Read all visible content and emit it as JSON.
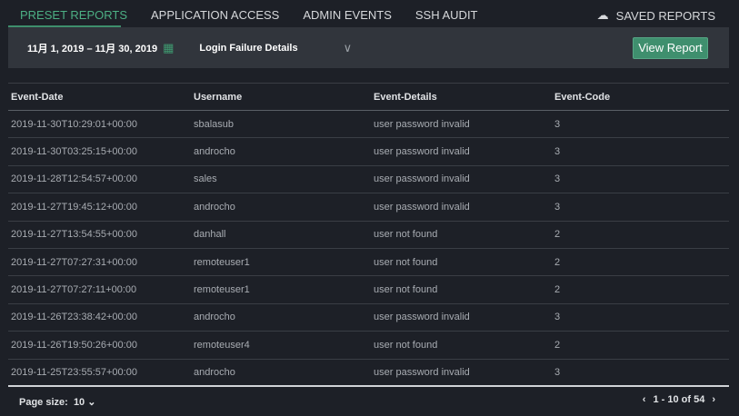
{
  "tabs": [
    {
      "label": "PRESET REPORTS",
      "active": true
    },
    {
      "label": "APPLICATION ACCESS"
    },
    {
      "label": "ADMIN EVENTS"
    },
    {
      "label": "SSH AUDIT"
    }
  ],
  "saved_reports": {
    "label": "SAVED REPORTS",
    "icon": "cloud-icon"
  },
  "toolbar": {
    "date_range": "11月 1, 2019 – 11月 30, 2019",
    "report": "Login Failure Details",
    "view_button": "View Report"
  },
  "table": {
    "headers": [
      "Event-Date",
      "Username",
      "Event-Details",
      "Event-Code"
    ],
    "rows": [
      [
        "2019-11-30T10:29:01+00:00",
        "sbalasub",
        "user password invalid",
        "3"
      ],
      [
        "2019-11-30T03:25:15+00:00",
        "androcho",
        "user password invalid",
        "3"
      ],
      [
        "2019-11-28T12:54:57+00:00",
        "sales",
        "user password invalid",
        "3"
      ],
      [
        "2019-11-27T19:45:12+00:00",
        "androcho",
        "user password invalid",
        "3"
      ],
      [
        "2019-11-27T13:54:55+00:00",
        "danhall",
        "user not found",
        "2"
      ],
      [
        "2019-11-27T07:27:31+00:00",
        "remoteuser1",
        "user not found",
        "2"
      ],
      [
        "2019-11-27T07:27:11+00:00",
        "remoteuser1",
        "user not found",
        "2"
      ],
      [
        "2019-11-26T23:38:42+00:00",
        "androcho",
        "user password invalid",
        "3"
      ],
      [
        "2019-11-26T19:50:26+00:00",
        "remoteuser4",
        "user not found",
        "2"
      ],
      [
        "2019-11-25T23:55:57+00:00",
        "androcho",
        "user password invalid",
        "3"
      ]
    ]
  },
  "footer": {
    "page_size_label": "Page size:",
    "page_size": "10",
    "range": "1 - 10 of 54"
  },
  "colors": {
    "accent": "#3f8f6e",
    "background": "#1d2027",
    "toolbar": "#31353c"
  }
}
